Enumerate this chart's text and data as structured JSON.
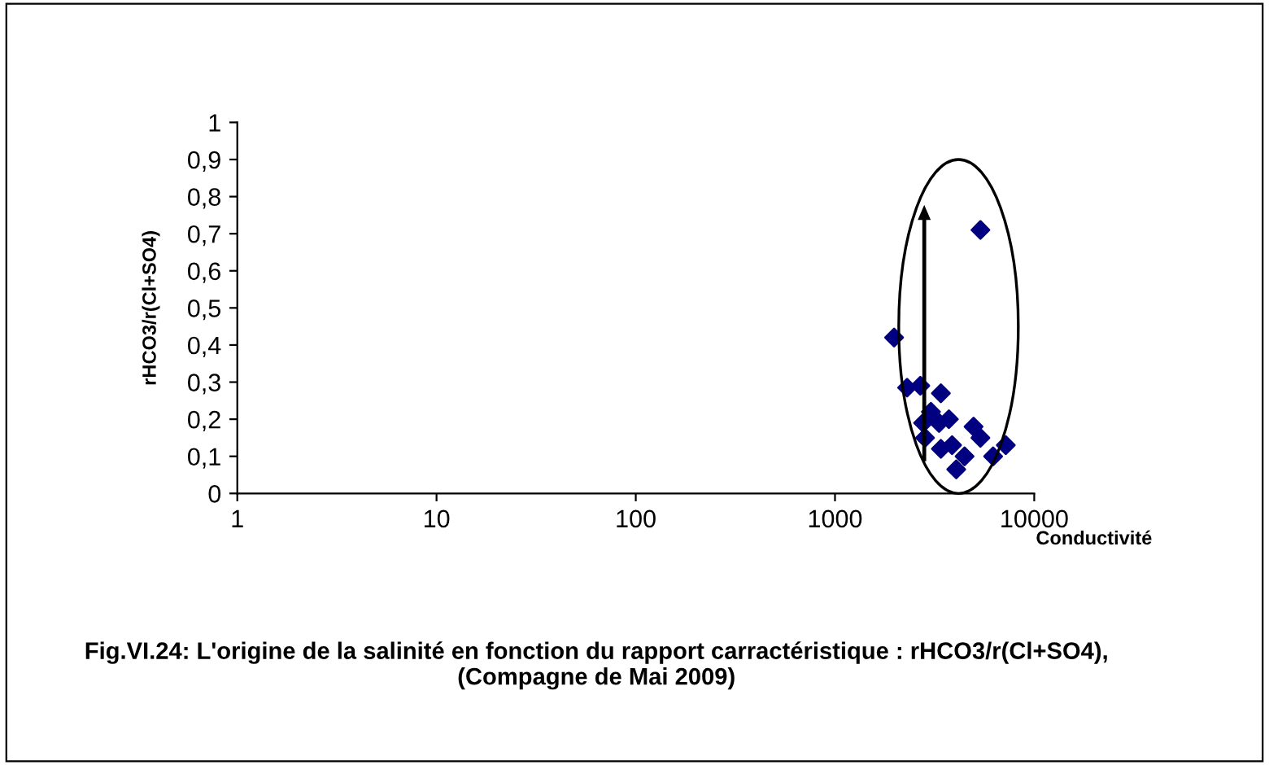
{
  "chart_data": {
    "type": "scatter",
    "title": "Fig.VI.24: L'origine de la salinité en fonction du rapport carractéristique : rHCO3/r(Cl+SO4), (Compagne de Mai 2009)",
    "xlabel": "Conductivité",
    "ylabel": "rHCO3/r(Cl+SO4)",
    "log": "x",
    "grid": false,
    "legend": false,
    "marker": "diamond",
    "xlim": [
      1,
      10000
    ],
    "xticks": [
      1,
      10,
      100,
      1000,
      10000
    ],
    "ylim": [
      0,
      1
    ],
    "yticks": [
      {
        "value": 0,
        "label": "0"
      },
      {
        "value": 0.1,
        "label": "0,1"
      },
      {
        "value": 0.2,
        "label": "0,2"
      },
      {
        "value": 0.3,
        "label": "0,3"
      },
      {
        "value": 0.4,
        "label": "0,4"
      },
      {
        "value": 0.5,
        "label": "0,5"
      },
      {
        "value": 0.6,
        "label": "0,6"
      },
      {
        "value": 0.7,
        "label": "0,7"
      },
      {
        "value": 0.8,
        "label": "0,8"
      },
      {
        "value": 0.9,
        "label": "0,9"
      },
      {
        "value": 1,
        "label": "1"
      }
    ],
    "series": [
      {
        "color": "#000080",
        "x": [
          5370,
          1980,
          2300,
          2680,
          3400,
          3030,
          3730,
          2770,
          3330,
          2830,
          4960,
          5370,
          3400,
          3870,
          4470,
          4060,
          7200,
          6220
        ],
        "values": [
          0.71,
          0.42,
          0.285,
          0.29,
          0.27,
          0.22,
          0.2,
          0.19,
          0.19,
          0.15,
          0.18,
          0.15,
          0.12,
          0.13,
          0.1,
          0.065,
          0.13,
          0.1
        ]
      }
    ]
  }
}
